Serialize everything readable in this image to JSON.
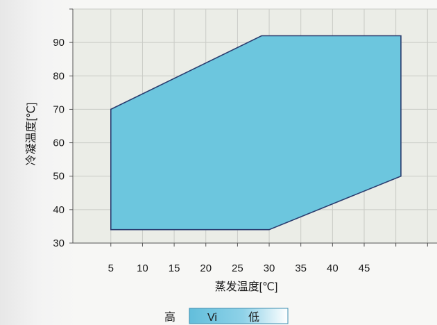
{
  "chart_data": {
    "type": "area",
    "title": "",
    "xlabel": "蒸发温度[℃]",
    "ylabel": "冷凝温度[℃]",
    "x_ticks": [
      5,
      10,
      15,
      20,
      25,
      30,
      35,
      40,
      45
    ],
    "y_ticks": [
      30,
      40,
      50,
      60,
      70,
      80,
      90
    ],
    "xlim": [
      -1,
      56.5
    ],
    "ylim": [
      30,
      100
    ],
    "grid": true,
    "envelope": {
      "x": [
        5,
        28.8,
        50.8,
        50.8,
        30,
        5
      ],
      "y": [
        70,
        92,
        92,
        50,
        34,
        34
      ]
    },
    "colors": {
      "fill": "#6cc6de",
      "outline": "#2a3c6e",
      "grid": "#c9cbc6",
      "plot_background": "#ebede7"
    },
    "legend": {
      "high_label": "高",
      "vi_label": "Vi",
      "low_label": "低"
    }
  }
}
